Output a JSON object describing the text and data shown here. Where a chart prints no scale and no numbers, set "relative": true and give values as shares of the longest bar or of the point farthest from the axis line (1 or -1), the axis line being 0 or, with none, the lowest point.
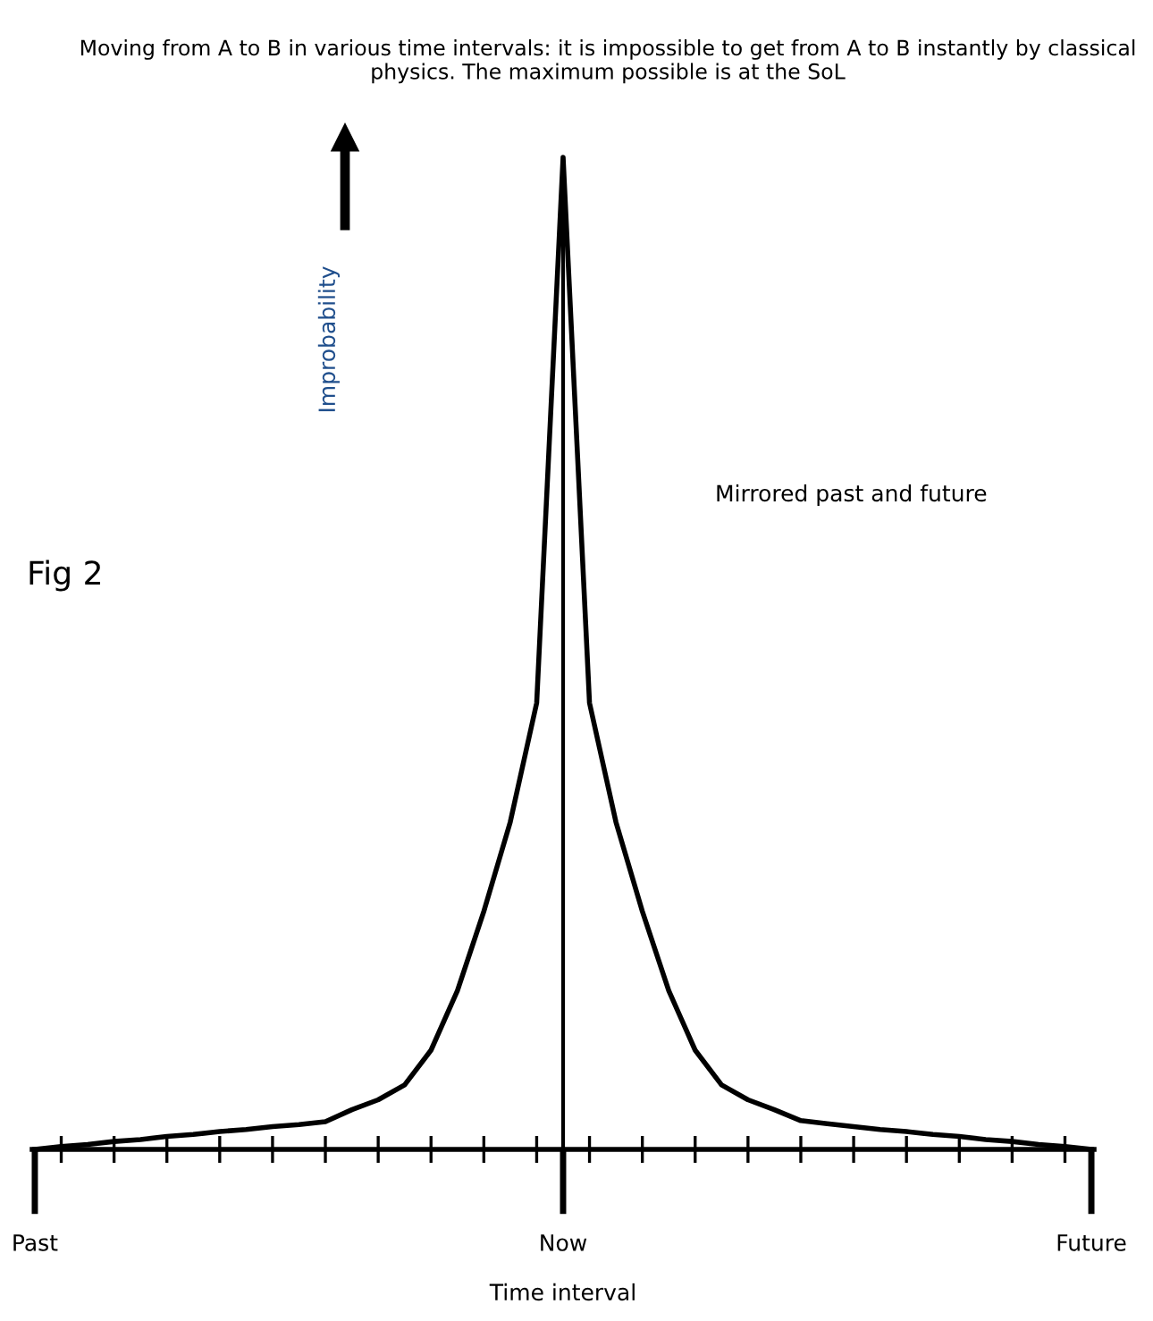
{
  "chart_data": {
    "type": "line",
    "relative": true,
    "title": "Moving from A to B in various time intervals: it is impossible to get from A to B instantly by classical physics. The maximum possible is at the SoL",
    "xlabel": "Time interval",
    "ylabel": "Improbability",
    "annotations": [
      "Mirrored past and future",
      "Fig 2"
    ],
    "categories": [
      "Past",
      null,
      null,
      null,
      null,
      null,
      null,
      null,
      null,
      null,
      null,
      null,
      null,
      null,
      null,
      null,
      null,
      null,
      null,
      null,
      "Now",
      null,
      null,
      null,
      null,
      null,
      null,
      null,
      null,
      null,
      null,
      null,
      null,
      null,
      null,
      null,
      null,
      null,
      null,
      null,
      "Future"
    ],
    "series": [
      {
        "color": "#000000",
        "values": [
          0.0,
          0.003,
          0.005,
          0.008,
          0.01,
          0.013,
          0.015,
          0.018,
          0.02,
          0.023,
          0.025,
          0.028,
          0.04,
          0.05,
          0.065,
          0.1,
          0.16,
          0.24,
          0.33,
          0.45,
          1.0,
          0.45,
          0.33,
          0.24,
          0.16,
          0.1,
          0.065,
          0.05,
          0.04,
          0.029,
          0.026,
          0.023,
          0.02,
          0.018,
          0.015,
          0.013,
          0.01,
          0.008,
          0.005,
          0.003,
          0.0
        ]
      }
    ],
    "legend": false,
    "marker": "none",
    "line_style": "solid"
  }
}
